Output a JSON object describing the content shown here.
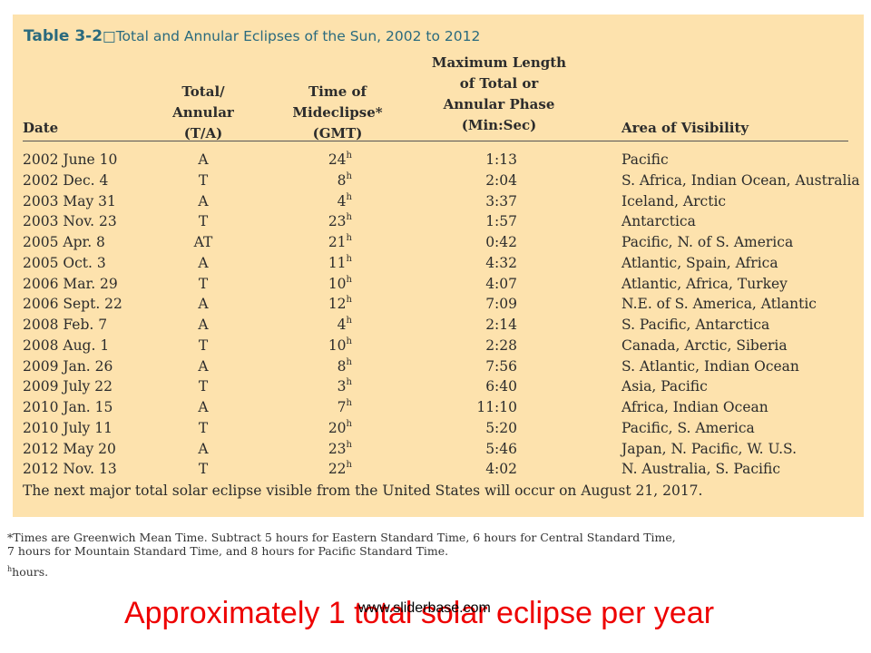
{
  "table": {
    "label": "Table 3-2",
    "title": "□Total and Annular Eclipses of the Sun, 2002 to 2012",
    "headers": {
      "date": "Date",
      "ta": [
        "Total/",
        "Annular",
        "(T/A)"
      ],
      "time": [
        "Time of",
        "Mideclipse*",
        "(GMT)"
      ],
      "maxlen": [
        "Maximum Length",
        "of Total or",
        "Annular Phase",
        "(Min:Sec)"
      ],
      "area": "Area of Visibility"
    },
    "time_suffix": "h",
    "rows": [
      {
        "date": "2002 June 10",
        "ta": "A",
        "time": "24",
        "length": "1:13",
        "area": "Pacific"
      },
      {
        "date": "2002 Dec. 4",
        "ta": "T",
        "time": "8",
        "length": "2:04",
        "area": "S. Africa, Indian Ocean, Australia"
      },
      {
        "date": "2003 May 31",
        "ta": "A",
        "time": "4",
        "length": "3:37",
        "area": "Iceland, Arctic"
      },
      {
        "date": "2003 Nov. 23",
        "ta": "T",
        "time": "23",
        "length": "1:57",
        "area": "Antarctica"
      },
      {
        "date": "2005 Apr. 8",
        "ta": "AT",
        "time": "21",
        "length": "0:42",
        "area": "Pacific, N. of S. America"
      },
      {
        "date": "2005 Oct. 3",
        "ta": "A",
        "time": "11",
        "length": "4:32",
        "area": "Atlantic, Spain, Africa"
      },
      {
        "date": "2006 Mar. 29",
        "ta": "T",
        "time": "10",
        "length": "4:07",
        "area": "Atlantic, Africa, Turkey"
      },
      {
        "date": "2006 Sept. 22",
        "ta": "A",
        "time": "12",
        "length": "7:09",
        "area": "N.E. of S. America, Atlantic"
      },
      {
        "date": "2008 Feb. 7",
        "ta": "A",
        "time": "4",
        "length": "2:14",
        "area": "S. Pacific, Antarctica"
      },
      {
        "date": "2008 Aug. 1",
        "ta": "T",
        "time": "10",
        "length": "2:28",
        "area": "Canada, Arctic, Siberia"
      },
      {
        "date": "2009 Jan. 26",
        "ta": "A",
        "time": "8",
        "length": "7:56",
        "area": "S. Atlantic, Indian Ocean"
      },
      {
        "date": "2009 July 22",
        "ta": "T",
        "time": "3",
        "length": "6:40",
        "area": "Asia, Pacific"
      },
      {
        "date": "2010 Jan. 15",
        "ta": "A",
        "time": "7",
        "length": "11:10",
        "area": "Africa, Indian Ocean"
      },
      {
        "date": "2010 July 11",
        "ta": "T",
        "time": "20",
        "length": "5:20",
        "area": "Pacific, S. America"
      },
      {
        "date": "2012 May 20",
        "ta": "A",
        "time": "23",
        "length": "5:46",
        "area": "Japan, N. Pacific, W. U.S."
      },
      {
        "date": "2012 Nov. 13",
        "ta": "T",
        "time": "22",
        "length": "4:02",
        "area": "N. Australia, S. Pacific"
      }
    ],
    "note": "The next major total solar eclipse visible from the United States will occur on August 21, 2017."
  },
  "footnotes": {
    "times": [
      "*Times are Greenwich Mean Time. Subtract 5 hours for Eastern Standard Time, 6 hours for Central Standard Time,",
      "7 hours for Mountain Standard Time, and 8 hours for Pacific Standard Time."
    ],
    "hours_mark": "h",
    "hours_text": "hours."
  },
  "watermark": "www.sliderbase.com",
  "caption": "Approximately  1 total solar eclipse per year",
  "colors": {
    "panel_background": "#fde2ad",
    "title_color": "#2a6a7e",
    "caption_color": "#ee0000"
  }
}
